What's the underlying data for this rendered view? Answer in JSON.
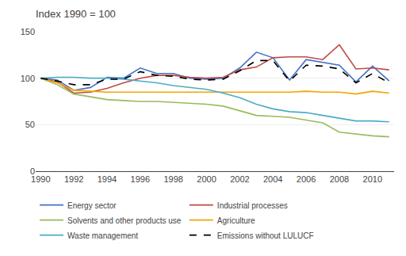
{
  "chart_data": {
    "type": "line",
    "title": "Index 1990 = 100",
    "x": [
      1990,
      1991,
      1992,
      1993,
      1994,
      1995,
      1996,
      1997,
      1998,
      1999,
      2000,
      2001,
      2002,
      2003,
      2004,
      2005,
      2006,
      2007,
      2008,
      2009,
      2010,
      2011
    ],
    "series": [
      {
        "name": "Energy sector",
        "color": "#4472C4",
        "values": [
          100,
          98,
          87,
          90,
          101,
          100,
          111,
          105,
          105,
          100,
          99,
          100,
          111,
          128,
          122,
          98,
          120,
          117,
          114,
          96,
          113,
          97
        ]
      },
      {
        "name": "Industrial processes",
        "color": "#BE4B48",
        "values": [
          100,
          96,
          84,
          85,
          89,
          95,
          100,
          103,
          103,
          101,
          100,
          101,
          109,
          112,
          122,
          123,
          123,
          120,
          136,
          110,
          111,
          109
        ]
      },
      {
        "name": "Solvents and other products use",
        "color": "#9BBB59",
        "values": [
          100,
          93,
          83,
          80,
          77,
          76,
          75,
          75,
          74,
          73,
          72,
          70,
          65,
          60,
          59,
          58,
          55,
          52,
          42,
          40,
          38,
          37
        ]
      },
      {
        "name": "Agriculture",
        "color": "#F0A500",
        "values": [
          100,
          95,
          87,
          86,
          85,
          85,
          85,
          85,
          85,
          85,
          85,
          85,
          85,
          85,
          85,
          85,
          86,
          85,
          85,
          83,
          86,
          84
        ]
      },
      {
        "name": "Waste management",
        "color": "#4BACC6",
        "values": [
          100,
          101,
          101,
          100,
          100,
          99,
          97,
          95,
          92,
          90,
          88,
          84,
          79,
          72,
          67,
          64,
          63,
          60,
          57,
          54,
          54,
          53
        ]
      },
      {
        "name": "Emissions without LULUCF",
        "color": "#000000",
        "line_style": "dash",
        "values": [
          100,
          97,
          93,
          93,
          99,
          99,
          107,
          103,
          102,
          99,
          98,
          99,
          108,
          119,
          119,
          97,
          114,
          113,
          110,
          95,
          105,
          95
        ]
      }
    ],
    "xlim": [
      1989.7,
      2011.3
    ],
    "xticks": [
      1990,
      1992,
      1994,
      1996,
      1998,
      2000,
      2002,
      2004,
      2006,
      2008,
      2010
    ],
    "ylim": [
      0,
      150
    ],
    "yticks": [
      0,
      50,
      100,
      150
    ],
    "grid": "y",
    "legend": "bottom"
  }
}
